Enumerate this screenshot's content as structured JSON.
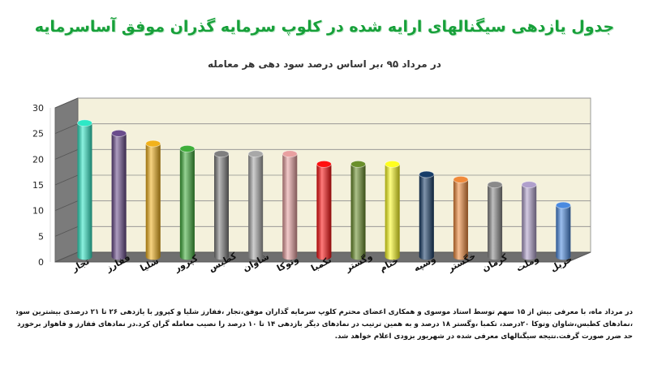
{
  "title": "جدول یازدهی سیگنالهای ارایه شده در کلوپ سرمایه گذران موفق آساسرمایه",
  "subtitle": "در مرداد ۹۵ ،بر اساس درصد سود دهی هر معامله",
  "chart_data": {
    "type": "bar",
    "style": "3d-cylinder",
    "categories": [
      "تجار",
      "ففارز",
      "شلیا",
      "کپرور",
      "کطبس",
      "شاوان",
      "وتوکا",
      "تکمبا",
      "وگستر",
      "ختام",
      "وسپه",
      "خگستر",
      "کرمان",
      "وملت",
      "حریل"
    ],
    "values": [
      26,
      24,
      22,
      21,
      20,
      20,
      20,
      18,
      18,
      18,
      16,
      15,
      14,
      14,
      10
    ],
    "colors": [
      "#2ee8c6",
      "#6a4c8c",
      "#f2b21c",
      "#3fae3a",
      "#7f7f7f",
      "#a8a8a8",
      "#e9a0a0",
      "#ff1010",
      "#6a8f2a",
      "#ffff20",
      "#173d68",
      "#f08a3a",
      "#8a8a8a",
      "#b0a0cc",
      "#4a8ae0"
    ],
    "ylim": [
      0,
      30
    ],
    "yticks": [
      0,
      5,
      10,
      15,
      20,
      25,
      30
    ],
    "xlabel": "",
    "ylabel": "",
    "grid": true,
    "legend": "none"
  },
  "note": {
    "lines": [
      "در مرداد ماه، با معرفی بیش از ۱۵ سهم توسط استاد موسوی و همکاری اعضای محترم کلوپ سرمایه گذاران موفق،تجار ،ففارز شلیا و کپرور با یازدهی ۲۶ تا ۲۱ درصدی بیشترین سود",
      "،نمادهای کطبس،شاوان وتوکا ۲۰درصد، تکمبا ،وگستر ۱۸ درصد و به همین ترتیب در نمادهای دیگر بازدهی ۱۴ تا ۱۰ درصد را نصیب معامله گران کرد.در نمادهای ففارز و فاهواز برخورد به",
      "حد ضرر صورت گرفت.نتیجه سیگنالهای معرفی شده در شهریور بزودی اعلام خواهد شد."
    ]
  }
}
